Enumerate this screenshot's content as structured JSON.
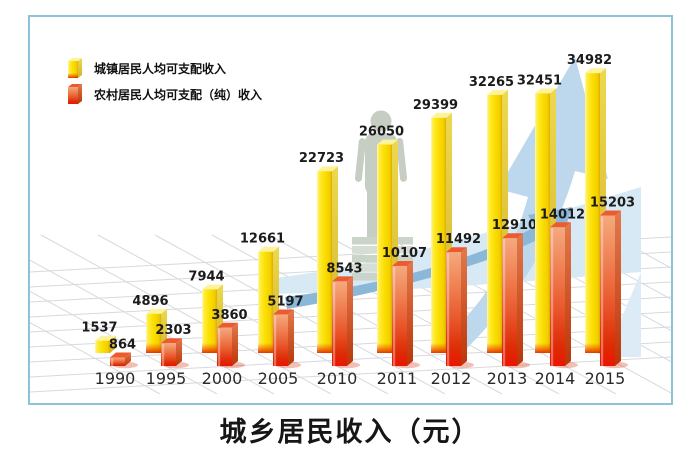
{
  "title": "城乡居民收入（元）",
  "legend": {
    "urban_label": "城镇居民人均可支配收入",
    "rural_label": "农村居民人均可支配（纯）收入"
  },
  "colors": {
    "urban_bar": "#fbdf00",
    "rural_bar": "#e9552a",
    "frame_border": "#8ec2d6",
    "arrow_pale": "#d7e9f5",
    "arrow_light": "#bdd8ec",
    "arrow_mid": "#8bb7d9",
    "floor_grid": "#d6d9de",
    "figure": "#c6cec4",
    "label_text": "#1b1b1b"
  },
  "chart_data": {
    "type": "bar",
    "categories": [
      "1990",
      "1995",
      "2000",
      "2005",
      "2010",
      "2011",
      "2012",
      "2013",
      "2014",
      "2015"
    ],
    "series": [
      {
        "name": "城镇居民人均可支配收入",
        "color": "#fbdf00",
        "values": [
          1537,
          4896,
          7944,
          12661,
          22723,
          26050,
          29399,
          32265,
          32451,
          34982
        ]
      },
      {
        "name": "农村居民人均可支配（纯）收入",
        "color": "#e9552a",
        "values": [
          864,
          2303,
          3860,
          5197,
          8543,
          10107,
          11492,
          12910,
          14012,
          15203
        ]
      }
    ],
    "title": "城乡居民收入（元）",
    "xlabel": "",
    "ylabel": "",
    "value_labels": true,
    "legend_position": "top-left",
    "grid": "perspective-floor",
    "decor": [
      "upward-blue-arrows",
      "person-on-steps"
    ]
  }
}
